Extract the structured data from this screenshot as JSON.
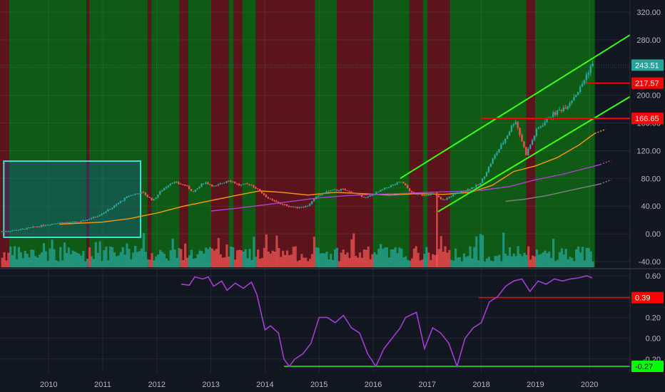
{
  "chart_data": [
    {
      "type": "candlestick",
      "title": "",
      "ylim": [
        -40,
        330
      ],
      "xlim": [
        2009.1,
        2020.75
      ],
      "y_ticks": [
        "320.00",
        "280.00",
        "240.00",
        "200.00",
        "160.00",
        "120.00",
        "80.00",
        "40.00",
        "0.00",
        "-40.00"
      ],
      "y_tick_values": [
        320,
        280,
        240,
        200,
        160,
        120,
        80,
        40,
        0,
        -40
      ],
      "x_ticks": [
        "2010",
        "2011",
        "2012",
        "2013",
        "2014",
        "2015",
        "2016",
        "2017",
        "2018",
        "2019",
        "2020"
      ],
      "x_tick_values": [
        2010,
        2011,
        2012,
        2013,
        2014,
        2015,
        2016,
        2017,
        2018,
        2019,
        2020
      ],
      "last_price_label": "243.51",
      "last_price": 243.51,
      "levels": [
        {
          "label": "217.57",
          "value": 217.57,
          "color": "#ff0000",
          "from": 2019.95
        },
        {
          "label": "166.65",
          "value": 166.65,
          "color": "#ff0000",
          "from": 2018.0
        }
      ],
      "colors": {
        "background": "#131722",
        "bull_zone": "#0f5a14",
        "bear_zone": "#5c141c",
        "up_candle": "#26a69a",
        "down_candle": "#ef5350",
        "channel": "#39ff14",
        "box_border": "#40e0d0",
        "ma_orange": "#ff9800",
        "ma_purple": "#b040d0",
        "ma_gray": "#808080"
      },
      "zones": [
        {
          "start": 2009.1,
          "end": 2009.27,
          "state": "bear"
        },
        {
          "start": 2009.27,
          "end": 2010.7,
          "state": "bull"
        },
        {
          "start": 2010.7,
          "end": 2010.75,
          "state": "bear"
        },
        {
          "start": 2010.75,
          "end": 2011.83,
          "state": "bull"
        },
        {
          "start": 2011.83,
          "end": 2011.9,
          "state": "bear"
        },
        {
          "start": 2011.9,
          "end": 2012.42,
          "state": "bull"
        },
        {
          "start": 2012.42,
          "end": 2012.58,
          "state": "bear"
        },
        {
          "start": 2012.58,
          "end": 2013.0,
          "state": "bull"
        },
        {
          "start": 2013.0,
          "end": 2013.33,
          "state": "bear"
        },
        {
          "start": 2013.33,
          "end": 2013.42,
          "state": "bull"
        },
        {
          "start": 2013.42,
          "end": 2013.58,
          "state": "bear"
        },
        {
          "start": 2013.58,
          "end": 2013.83,
          "state": "bull"
        },
        {
          "start": 2013.83,
          "end": 2014.92,
          "state": "bear"
        },
        {
          "start": 2014.92,
          "end": 2015.33,
          "state": "bull"
        },
        {
          "start": 2015.33,
          "end": 2016.0,
          "state": "bear"
        },
        {
          "start": 2016.0,
          "end": 2016.67,
          "state": "bull"
        },
        {
          "start": 2016.67,
          "end": 2016.92,
          "state": "bear"
        },
        {
          "start": 2016.92,
          "end": 2017.0,
          "state": "bull"
        },
        {
          "start": 2017.0,
          "end": 2017.42,
          "state": "bear"
        },
        {
          "start": 2017.42,
          "end": 2018.83,
          "state": "bull"
        },
        {
          "start": 2018.83,
          "end": 2019.0,
          "state": "bear"
        },
        {
          "start": 2019.0,
          "end": 2020.1,
          "state": "bull"
        }
      ],
      "price_anchors": [
        [
          2009.12,
          3
        ],
        [
          2009.5,
          6
        ],
        [
          2009.9,
          12
        ],
        [
          2010.2,
          16
        ],
        [
          2010.6,
          17
        ],
        [
          2010.9,
          25
        ],
        [
          2011.2,
          38
        ],
        [
          2011.5,
          55
        ],
        [
          2011.75,
          60
        ],
        [
          2011.95,
          48
        ],
        [
          2012.1,
          62
        ],
        [
          2012.3,
          75
        ],
        [
          2012.55,
          70
        ],
        [
          2012.7,
          60
        ],
        [
          2012.9,
          75
        ],
        [
          2013.1,
          68
        ],
        [
          2013.35,
          78
        ],
        [
          2013.55,
          70
        ],
        [
          2013.75,
          72
        ],
        [
          2013.95,
          60
        ],
        [
          2014.1,
          50
        ],
        [
          2014.35,
          42
        ],
        [
          2014.6,
          38
        ],
        [
          2014.8,
          40
        ],
        [
          2015.0,
          55
        ],
        [
          2015.2,
          62
        ],
        [
          2015.45,
          64
        ],
        [
          2015.7,
          58
        ],
        [
          2015.9,
          52
        ],
        [
          2016.05,
          58
        ],
        [
          2016.3,
          68
        ],
        [
          2016.55,
          75
        ],
        [
          2016.75,
          58
        ],
        [
          2016.95,
          56
        ],
        [
          2017.15,
          58
        ],
        [
          2017.3,
          48
        ],
        [
          2017.55,
          58
        ],
        [
          2017.8,
          65
        ],
        [
          2018.0,
          72
        ],
        [
          2018.25,
          110
        ],
        [
          2018.45,
          135
        ],
        [
          2018.65,
          165
        ],
        [
          2018.85,
          115
        ],
        [
          2019.05,
          150
        ],
        [
          2019.3,
          170
        ],
        [
          2019.6,
          185
        ],
        [
          2019.85,
          210
        ],
        [
          2020.05,
          243
        ]
      ],
      "channel_lines": [
        {
          "x1": 2016.5,
          "y1": 80,
          "x2": 2020.75,
          "y2": 287
        },
        {
          "x1": 2017.2,
          "y1": 32,
          "x2": 2020.75,
          "y2": 198
        }
      ],
      "box": {
        "x1": 2009.17,
        "x2": 2011.7,
        "y1": -5,
        "y2": 105
      },
      "moving_averages": [
        {
          "color": "#ff9800",
          "points": [
            [
              2010.2,
              14
            ],
            [
              2011.0,
              17
            ],
            [
              2011.5,
              22
            ],
            [
              2012.0,
              30
            ],
            [
              2012.5,
              40
            ],
            [
              2013.0,
              48
            ],
            [
              2013.5,
              56
            ],
            [
              2013.9,
              62
            ],
            [
              2014.3,
              60
            ],
            [
              2014.8,
              56
            ],
            [
              2015.3,
              60
            ],
            [
              2015.8,
              58
            ],
            [
              2016.3,
              56
            ],
            [
              2016.8,
              58
            ],
            [
              2017.3,
              57
            ],
            [
              2017.8,
              60
            ],
            [
              2018.2,
              70
            ],
            [
              2018.6,
              90
            ],
            [
              2019.0,
              98
            ],
            [
              2019.4,
              110
            ],
            [
              2019.8,
              128
            ],
            [
              2020.1,
              145
            ]
          ]
        },
        {
          "color": "#b040d0",
          "points": [
            [
              2013.0,
              33
            ],
            [
              2013.5,
              37
            ],
            [
              2014.0,
              42
            ],
            [
              2014.5,
              47
            ],
            [
              2015.0,
              52
            ],
            [
              2015.5,
              55
            ],
            [
              2016.0,
              57
            ],
            [
              2016.5,
              58
            ],
            [
              2017.0,
              60
            ],
            [
              2017.5,
              61
            ],
            [
              2018.0,
              63
            ],
            [
              2018.5,
              68
            ],
            [
              2019.0,
              78
            ],
            [
              2019.5,
              86
            ],
            [
              2020.2,
              100
            ]
          ]
        },
        {
          "color": "#808080",
          "points": [
            [
              2018.45,
              47
            ],
            [
              2018.8,
              50
            ],
            [
              2019.2,
              55
            ],
            [
              2019.6,
              62
            ],
            [
              2020.2,
              72
            ]
          ]
        }
      ]
    },
    {
      "type": "line",
      "ylim": [
        -0.3,
        0.64
      ],
      "y_ticks": [
        "0.60",
        "0.40",
        "0.20",
        "0.00",
        "-0.20"
      ],
      "y_tick_values": [
        0.6,
        0.4,
        0.2,
        0.0,
        -0.2
      ],
      "level_labels": [
        {
          "label": "0.39",
          "value": 0.39,
          "color": "#ff0000",
          "from": 2017.95
        },
        {
          "label": "-0.27",
          "value": -0.27,
          "color": "#00ff00",
          "from": 2014.35
        }
      ],
      "series": [
        {
          "color": "#a13bd1",
          "x": [
            2012.45,
            2012.6,
            2012.7,
            2012.85,
            2012.95,
            2013.05,
            2013.2,
            2013.3,
            2013.45,
            2013.6,
            2013.75,
            2013.85,
            2014.0,
            2014.1,
            2014.25,
            2014.35,
            2014.45,
            2014.55,
            2014.7,
            2014.85,
            2015.0,
            2015.15,
            2015.3,
            2015.45,
            2015.6,
            2015.75,
            2015.9,
            2016.05,
            2016.2,
            2016.35,
            2016.5,
            2016.6,
            2016.8,
            2016.95,
            2017.1,
            2017.25,
            2017.4,
            2017.55,
            2017.7,
            2017.85,
            2018.0,
            2018.15,
            2018.3,
            2018.45,
            2018.6,
            2018.75,
            2018.9,
            2019.05,
            2019.2,
            2019.35,
            2019.5,
            2019.65,
            2019.8,
            2019.95,
            2020.05
          ],
          "y": [
            0.52,
            0.51,
            0.59,
            0.57,
            0.59,
            0.5,
            0.55,
            0.46,
            0.53,
            0.48,
            0.54,
            0.42,
            0.08,
            0.12,
            0.05,
            -0.2,
            -0.27,
            -0.2,
            -0.15,
            -0.05,
            0.2,
            0.2,
            0.15,
            0.22,
            0.1,
            0.05,
            -0.15,
            -0.27,
            -0.1,
            0.0,
            0.1,
            0.2,
            0.25,
            -0.1,
            0.1,
            0.05,
            -0.05,
            -0.27,
            0.0,
            0.1,
            0.15,
            0.35,
            0.4,
            0.5,
            0.55,
            0.57,
            0.45,
            0.55,
            0.52,
            0.57,
            0.55,
            0.57,
            0.58,
            0.6,
            0.58
          ]
        }
      ]
    }
  ]
}
